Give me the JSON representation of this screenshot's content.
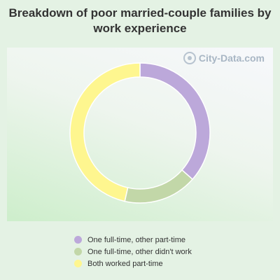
{
  "chart_data": {
    "type": "pie",
    "title": "Breakdown of poor married-couple families by work experience",
    "donut": true,
    "categories": [
      "One full-time, other part-time",
      "One full-time, other didn't work",
      "Both worked part-time"
    ],
    "values": [
      36.5,
      17.0,
      46.5
    ],
    "colors": [
      "#bca8da",
      "#c2d7a8",
      "#fef68f"
    ],
    "legend_position": "bottom"
  },
  "watermark": {
    "text": "City-Data.com",
    "icon": "search-icon"
  }
}
